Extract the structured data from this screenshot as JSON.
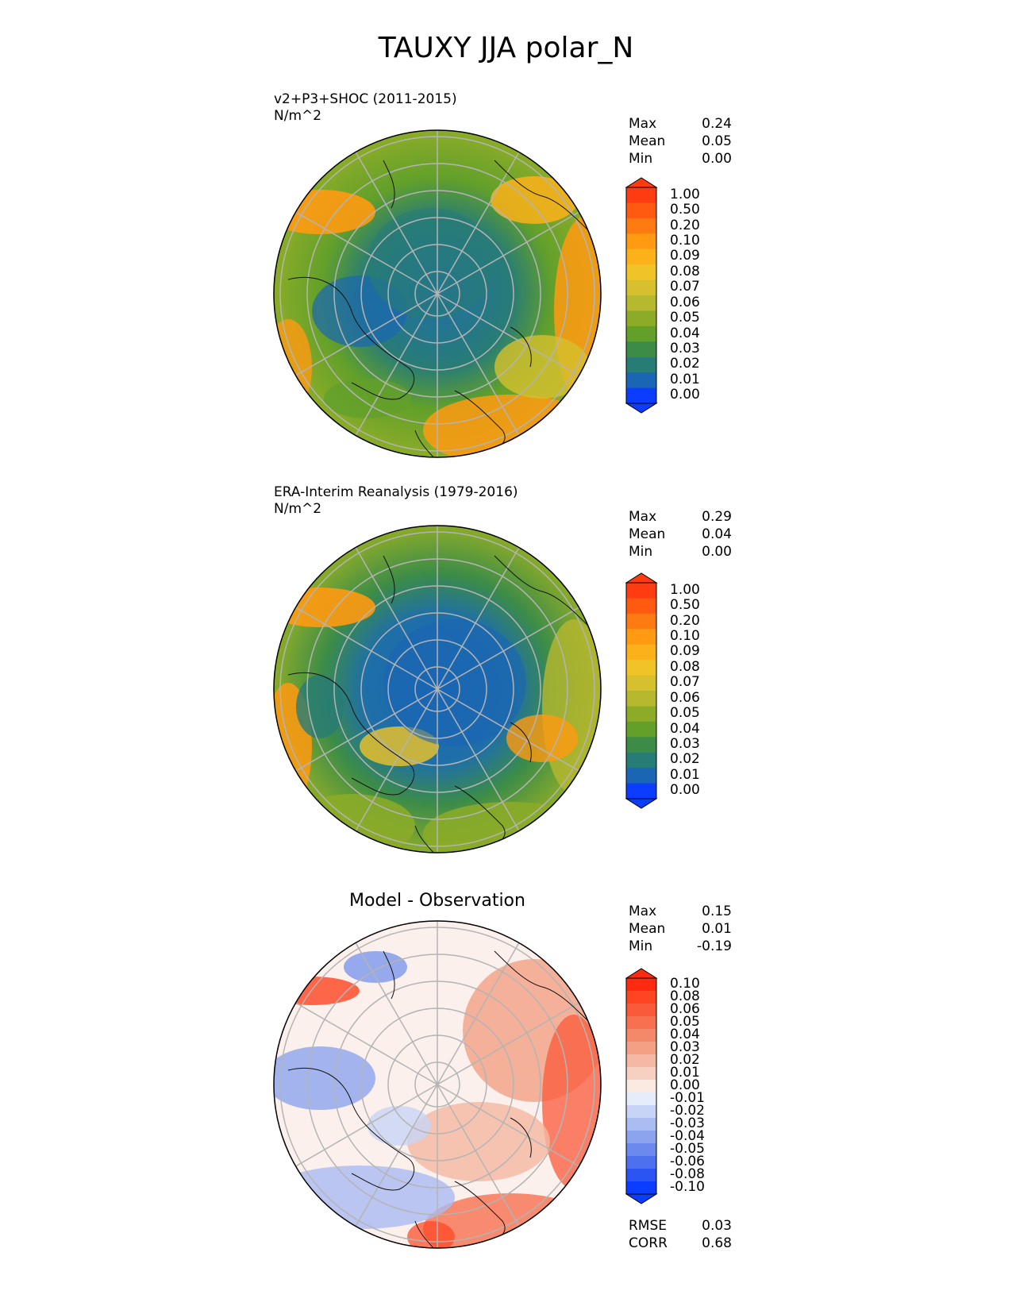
{
  "title": "TAUXY JJA polar_N",
  "panels": [
    {
      "title_line1": "v2+P3+SHOC (2011-2015)",
      "title_line2": "N/m^2",
      "stats": [
        {
          "label": "Max",
          "value": "0.24"
        },
        {
          "label": "Mean",
          "value": "0.05"
        },
        {
          "label": "Min",
          "value": "0.00"
        }
      ],
      "colorbar_labels": [
        "1.00",
        "0.50",
        "0.20",
        "0.10",
        "0.09",
        "0.08",
        "0.07",
        "0.06",
        "0.05",
        "0.04",
        "0.03",
        "0.02",
        "0.01",
        "0.00"
      ],
      "colors": [
        "#ff3b12",
        "#ff5a10",
        "#ff7a10",
        "#ff9a12",
        "#fbb21a",
        "#f0c426",
        "#d6c02e",
        "#b6b82e",
        "#8cac28",
        "#62a02a",
        "#3c8c48",
        "#287c76",
        "#1a66b4",
        "#0a3dff"
      ]
    },
    {
      "title_line1": "ERA-Interim Reanalysis (1979-2016)",
      "title_line2": "N/m^2",
      "stats": [
        {
          "label": "Max",
          "value": "0.29"
        },
        {
          "label": "Mean",
          "value": "0.04"
        },
        {
          "label": "Min",
          "value": "0.00"
        }
      ],
      "colorbar_labels": [
        "1.00",
        "0.50",
        "0.20",
        "0.10",
        "0.09",
        "0.08",
        "0.07",
        "0.06",
        "0.05",
        "0.04",
        "0.03",
        "0.02",
        "0.01",
        "0.00"
      ],
      "colors": [
        "#ff3b12",
        "#ff5a10",
        "#ff7a10",
        "#ff9a12",
        "#fbb21a",
        "#f0c426",
        "#d6c02e",
        "#b6b82e",
        "#8cac28",
        "#62a02a",
        "#3c8c48",
        "#287c76",
        "#1a66b4",
        "#0a3dff"
      ]
    },
    {
      "title": "Model - Observation",
      "stats": [
        {
          "label": "Max",
          "value": "0.15"
        },
        {
          "label": "Mean",
          "value": "0.01"
        },
        {
          "label": "Min",
          "value": "-0.19"
        }
      ],
      "colorbar_labels": [
        "0.10",
        "0.08",
        "0.06",
        "0.05",
        "0.04",
        "0.03",
        "0.02",
        "0.01",
        "0.00",
        "-0.01",
        "-0.02",
        "-0.03",
        "-0.04",
        "-0.05",
        "-0.06",
        "-0.08",
        "-0.10"
      ],
      "colors": [
        "#ff2a10",
        "#ff4422",
        "#fa5a3a",
        "#f77050",
        "#f48868",
        "#f4a084",
        "#f5b8a2",
        "#f7d0c2",
        "#faeae2",
        "#e6ecfa",
        "#c8d4f6",
        "#aabcf2",
        "#8ca4ee",
        "#6c8aee",
        "#4c70ee",
        "#2c54f2",
        "#0a3dff"
      ],
      "metrics": [
        {
          "label": "RMSE",
          "value": "0.03"
        },
        {
          "label": "CORR",
          "value": "0.68"
        }
      ]
    }
  ]
}
